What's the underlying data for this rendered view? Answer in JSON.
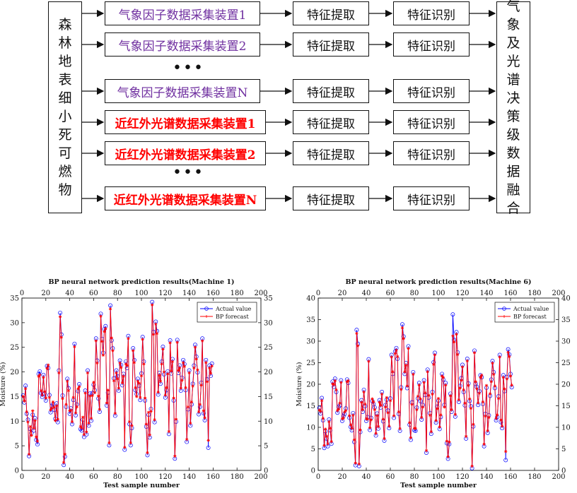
{
  "diagram": {
    "left_label": "森林地表细小死可燃物",
    "right_label": "气象及光谱决策级数据融合",
    "weather_devices": [
      "气象因子数据采集装置1",
      "气象因子数据采集装置2",
      "气象因子数据采集装置N"
    ],
    "nir_devices": [
      "近红外光谱数据采集装置1",
      "近红外光谱数据采集装置2",
      "近红外光谱数据采集装置N"
    ],
    "extract_label": "特征提取",
    "recognize_label": "特征识别",
    "ellipsis": "•••"
  },
  "chart_data": [
    {
      "type": "line",
      "title": "BP neural network prediction results(Machine 1)",
      "xlabel": "Test sample number",
      "ylabel": "Moisture (%)",
      "xlim": [
        0,
        200
      ],
      "ylim": [
        0,
        35
      ],
      "xticks": [
        0,
        20,
        40,
        60,
        80,
        100,
        120,
        140,
        160,
        180,
        200
      ],
      "yticks": [
        0,
        5,
        10,
        15,
        20,
        25,
        30,
        35
      ],
      "legend": {
        "position": "top-right",
        "entries": [
          "Actual value",
          "BP forecast"
        ]
      },
      "series": [
        {
          "name": "Actual value",
          "color": "#0000ff",
          "marker": "circle",
          "values": [
            15.2,
            13.8,
            17.2,
            11.5,
            10.3,
            2.9,
            8.4,
            7.6,
            11.3,
            8.1,
            10.6,
            6.2,
            5.3,
            19.6,
            20.1,
            15.7,
            14.9,
            19.4,
            15.6,
            14.2,
            21.2,
            20.8,
            15.3,
            11.8,
            13.1,
            13.4,
            12.3,
            10.5,
            13.6,
            9.8,
            20.3,
            32.0,
            27.6,
            15.2,
            1.1,
            2.8,
            12.9,
            18.6,
            16.7,
            11.5,
            12.6,
            9.4,
            14.3,
            25.7,
            11.2,
            13.4,
            16.1,
            17.5,
            8.4,
            8.1,
            10.3,
            6.8,
            16.2,
            7.3,
            20.3,
            9.1,
            15.6,
            10.1,
            15.7,
            17.4,
            16.3,
            26.8,
            22.3,
            14.6,
            11.9,
            31.8,
            26.7,
            23.9,
            28.7,
            29.3,
            13.2,
            15.8,
            5.1,
            33.5,
            26.4,
            24.8,
            18.7,
            11.1,
            20.3,
            19.1,
            16.2,
            22.3,
            21.4,
            17.3,
            19.6,
            4.2,
            22.1,
            20.8,
            27.3,
            9.4,
            5.1,
            8.6,
            24.8,
            22.4,
            16.3,
            15.5,
            18.6,
            17.2,
            14.3,
            19.7,
            27.1,
            22.1,
            14.2,
            8.9,
            3.1,
            11.3,
            6.7,
            12.5,
            34.2,
            28.1,
            9.8,
            30.2,
            28.3,
            15.4,
            19.8,
            17.6,
            22.1,
            25.1,
            19.5,
            14.8,
            16.3,
            20.1,
            7.4,
            26.4,
            19.7,
            22.6,
            14.2,
            2.4,
            9.9,
            26.5,
            19.8,
            21.3,
            16.2,
            18.8,
            22.4,
            21.6,
            16.3,
            5.8,
            12.4,
            20.3,
            9.1,
            13.4,
            17.6,
            21.3,
            25.5,
            23.1,
            19.9,
            11.4,
            12.9,
            17.8,
            26.8,
            11.6,
            10.2,
            22.4,
            18.5,
            4.6,
            21.3,
            19.2,
            21.7
          ]
        },
        {
          "name": "BP forecast",
          "color": "#ff0000",
          "marker": "asterisk",
          "values": [
            15.0,
            14.1,
            16.6,
            11.9,
            9.8,
            3.3,
            8.9,
            7.1,
            12.1,
            8.6,
            10.1,
            6.8,
            5.9,
            19.1,
            19.4,
            16.2,
            15.3,
            18.9,
            16.0,
            14.7,
            20.7,
            21.4,
            14.8,
            12.3,
            12.6,
            13.9,
            12.8,
            10.1,
            13.1,
            10.4,
            19.8,
            31.2,
            27.0,
            14.6,
            1.6,
            3.3,
            13.4,
            18.1,
            16.2,
            12.1,
            12.2,
            9.9,
            14.8,
            25.1,
            11.7,
            12.9,
            16.6,
            17.0,
            8.9,
            8.6,
            10.8,
            7.3,
            15.7,
            7.8,
            19.8,
            9.6,
            15.1,
            10.6,
            15.2,
            17.9,
            15.8,
            26.3,
            21.8,
            15.1,
            12.4,
            31.3,
            26.2,
            23.4,
            28.2,
            28.8,
            13.7,
            16.3,
            5.6,
            32.8,
            26.9,
            24.3,
            18.2,
            11.6,
            19.8,
            18.6,
            16.7,
            21.8,
            20.9,
            17.8,
            19.1,
            4.7,
            21.6,
            21.3,
            26.8,
            9.9,
            5.6,
            9.1,
            24.3,
            21.9,
            16.8,
            15.0,
            18.1,
            17.7,
            14.8,
            19.2,
            26.6,
            21.6,
            14.7,
            9.4,
            3.6,
            11.8,
            7.2,
            12.0,
            33.6,
            27.6,
            10.3,
            29.7,
            27.8,
            15.9,
            19.3,
            18.1,
            21.6,
            24.6,
            20.0,
            15.3,
            16.8,
            19.6,
            7.9,
            25.9,
            20.2,
            22.1,
            14.7,
            2.9,
            10.4,
            26.0,
            20.3,
            20.8,
            16.7,
            18.3,
            21.9,
            21.1,
            16.8,
            6.3,
            12.9,
            19.8,
            9.6,
            13.9,
            17.1,
            20.8,
            25.0,
            22.6,
            20.4,
            11.9,
            13.4,
            17.3,
            26.3,
            12.1,
            10.7,
            21.9,
            18.0,
            6.1,
            20.8,
            19.7,
            21.2
          ]
        }
      ]
    },
    {
      "type": "line",
      "title": "BP neural network prediction results(Machine 6)",
      "xlabel": "Test sample number",
      "ylabel": "Moisture (%)",
      "xlim": [
        0,
        200
      ],
      "ylim": [
        0,
        40
      ],
      "xticks": [
        0,
        20,
        40,
        60,
        80,
        100,
        120,
        140,
        160,
        180,
        200
      ],
      "yticks": [
        0,
        5,
        10,
        15,
        20,
        25,
        30,
        35,
        40
      ],
      "legend": {
        "position": "top-right",
        "entries": [
          "Actual value",
          "BP forecast"
        ]
      },
      "series": [
        {
          "name": "Actual value",
          "color": "#0000ff",
          "marker": "circle",
          "values": [
            14.5,
            13.2,
            16.8,
            11.6,
            5.2,
            9.1,
            7.4,
            5.6,
            11.8,
            9.3,
            6.2,
            20.6,
            19.4,
            21.3,
            18.2,
            13.4,
            14.7,
            15.1,
            20.9,
            11.5,
            12.6,
            13.1,
            14.4,
            21.1,
            20.3,
            12.2,
            10.1,
            9.3,
            13.3,
            6.6,
            1.2,
            32.6,
            29.4,
            1.0,
            8.9,
            16.3,
            13.6,
            18.7,
            14.9,
            11.5,
            12.4,
            25.8,
            9.4,
            12.2,
            16.1,
            15.4,
            14.6,
            8.1,
            13.2,
            9.7,
            16.3,
            14.6,
            18.2,
            11.4,
            6.9,
            15.2,
            16.4,
            13.9,
            9.8,
            16.7,
            26.8,
            22.4,
            12.2,
            27.6,
            28.4,
            25.9,
            13.1,
            9.2,
            19.3,
            33.9,
            31.1,
            22.4,
            24.9,
            19.1,
            28.8,
            10.6,
            7.1,
            15.8,
            22.8,
            9.3,
            9.2,
            14.6,
            16.7,
            20.3,
            16.1,
            11.8,
            15.2,
            20.9,
            17.5,
            4.1,
            23.4,
            16.9,
            13.3,
            8.5,
            18.2,
            25.1,
            27.3,
            11.1,
            14.8,
            16.2,
            9.6,
            12.4,
            22.4,
            21.1,
            15.2,
            20.3,
            6.3,
            2.7,
            6.1,
            17.8,
            13.6,
            36.2,
            30.3,
            12.5,
            32.1,
            27.4,
            15.9,
            19.6,
            21.4,
            24.5,
            18.2,
            15.1,
            7.4,
            25.9,
            20.2,
            16.1,
            14.9,
            0.5,
            10.2,
            27.8,
            20.1,
            19.4,
            15.2,
            18.4,
            22.1,
            21.6,
            15.4,
            5.6,
            13.1,
            19.2,
            8.7,
            12.8,
            17.3,
            21.1,
            25.4,
            22.8,
            19.1,
            11.6,
            12.4,
            17.2,
            26.8,
            11.2,
            9.8,
            22.1,
            18.4,
            2.4,
            21.7,
            28.1,
            26.9,
            22.4,
            19.3
          ]
        },
        {
          "name": "BP forecast",
          "color": "#ff0000",
          "marker": "asterisk",
          "values": [
            14.0,
            13.7,
            16.2,
            12.1,
            5.8,
            9.6,
            7.9,
            6.2,
            11.3,
            9.8,
            6.7,
            20.1,
            19.9,
            20.8,
            18.7,
            13.9,
            14.2,
            15.6,
            20.4,
            12.0,
            12.1,
            13.6,
            13.9,
            20.6,
            20.8,
            12.7,
            10.6,
            9.8,
            12.8,
            7.1,
            1.7,
            31.8,
            28.9,
            1.5,
            9.4,
            15.8,
            14.1,
            18.2,
            15.4,
            12.0,
            11.9,
            25.3,
            9.9,
            11.7,
            16.6,
            15.9,
            14.1,
            8.6,
            12.7,
            10.2,
            15.8,
            15.1,
            17.7,
            11.9,
            7.4,
            14.7,
            16.9,
            13.4,
            10.3,
            16.2,
            26.3,
            22.9,
            12.7,
            27.1,
            27.9,
            26.4,
            13.6,
            9.7,
            18.8,
            33.1,
            30.6,
            22.9,
            24.4,
            19.6,
            28.3,
            11.1,
            7.6,
            15.3,
            22.3,
            9.8,
            9.7,
            14.1,
            17.2,
            19.8,
            16.6,
            12.3,
            14.7,
            20.4,
            18.0,
            4.6,
            22.9,
            17.4,
            12.8,
            9.0,
            17.7,
            24.6,
            26.8,
            11.6,
            14.3,
            16.7,
            10.1,
            12.9,
            21.9,
            21.6,
            14.7,
            19.8,
            6.8,
            3.2,
            6.6,
            17.3,
            14.1,
            31.2,
            29.8,
            13.0,
            31.6,
            26.9,
            16.4,
            19.1,
            20.9,
            24.0,
            18.7,
            15.6,
            7.9,
            25.4,
            19.7,
            16.6,
            14.4,
            1.0,
            10.7,
            27.3,
            20.6,
            18.9,
            15.7,
            17.9,
            21.6,
            22.1,
            15.9,
            6.1,
            12.6,
            19.7,
            9.2,
            12.3,
            17.8,
            20.6,
            24.9,
            22.3,
            19.6,
            12.1,
            12.9,
            16.7,
            26.3,
            11.7,
            10.3,
            21.6,
            18.9,
            4.4,
            21.2,
            27.4,
            26.4,
            21.9,
            19.8
          ]
        }
      ]
    }
  ]
}
